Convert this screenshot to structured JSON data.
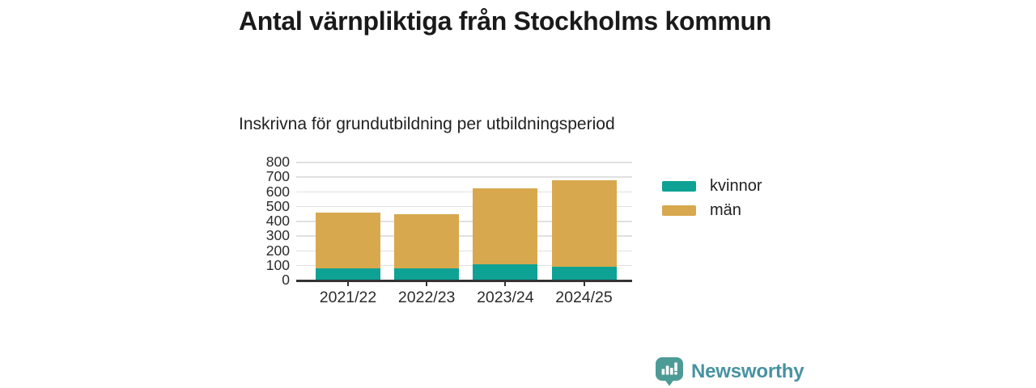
{
  "header": {
    "title": "Antal värnpliktiga från Stockholms kommun",
    "subtitle": "Inskrivna för grundutbildning per utbildningsperiod"
  },
  "chart_data": {
    "type": "bar",
    "stacked": true,
    "title": "Antal värnpliktiga från Stockholms kommun",
    "subtitle": "Inskrivna för grundutbildning per utbildningsperiod",
    "categories": [
      "2021/22",
      "2022/23",
      "2023/24",
      "2024/25"
    ],
    "series": [
      {
        "name": "kvinnor",
        "color": "#0ea294",
        "values": [
          75,
          75,
          105,
          90
        ]
      },
      {
        "name": "män",
        "color": "#d8a84f",
        "values": [
          380,
          370,
          515,
          585
        ]
      }
    ],
    "stack_totals": [
      455,
      445,
      620,
      675
    ],
    "xlabel": "",
    "ylabel": "",
    "ylim": [
      0,
      800
    ],
    "yticks": [
      0,
      100,
      200,
      300,
      400,
      500,
      600,
      700,
      800
    ],
    "grid": true,
    "legend_position": "right"
  },
  "footer": {
    "brand": "Newsworthy",
    "brand_color": "#4793a0",
    "logo_icon": "bar-chart-speech-bubble-icon"
  },
  "colors": {
    "background": "#ffffff",
    "text": "#1a1a1a",
    "axis": "#333333",
    "gridline": "#e0e0e0"
  }
}
